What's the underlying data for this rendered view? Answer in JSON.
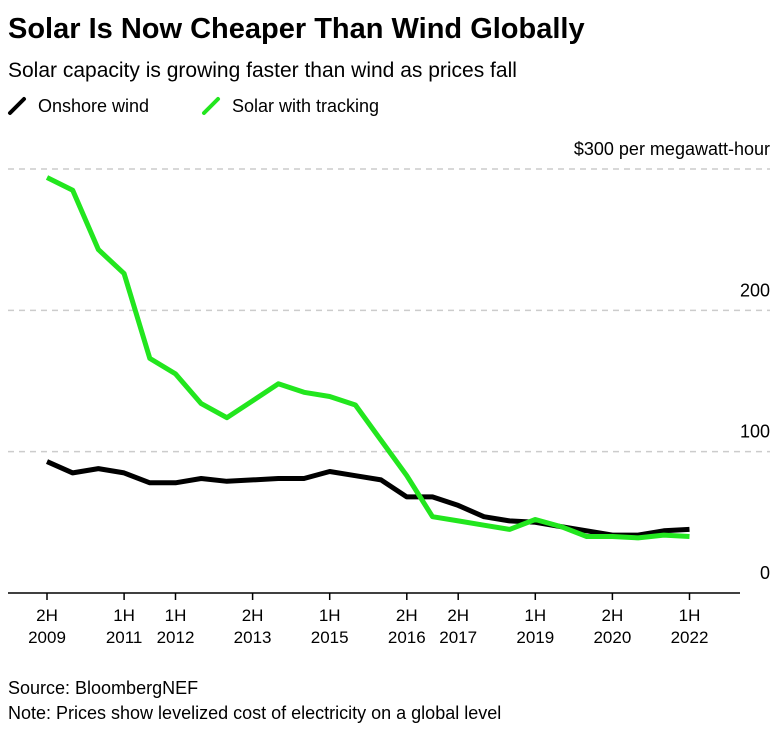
{
  "chart_data": {
    "type": "line",
    "title": "Solar Is Now Cheaper Than Wind Globally",
    "subtitle": "Solar capacity is growing faster than wind as prices fall",
    "source": "Source: BloombergNEF",
    "note": "Note: Prices show levelized cost of electricity on a global level",
    "categories": [
      "2H 2009",
      null,
      null,
      "1H 2011",
      null,
      "1H 2012",
      null,
      null,
      "2H 2013",
      null,
      null,
      "1H 2015",
      null,
      null,
      "2H 2016",
      null,
      "2H 2017",
      null,
      null,
      "1H 2019",
      null,
      null,
      "2H 2020",
      null,
      null,
      "1H 2022"
    ],
    "series": [
      {
        "name": "Onshore wind",
        "color": "#000000",
        "values": [
          93,
          85,
          88,
          85,
          78,
          78,
          81,
          79,
          80,
          81,
          81,
          86,
          83,
          80,
          68,
          68,
          62,
          54,
          51,
          50,
          47,
          44,
          41,
          41,
          44,
          45
        ]
      },
      {
        "name": "Solar with tracking",
        "color": "#22e61e",
        "values": [
          294,
          285,
          243,
          226,
          166,
          155,
          134,
          124,
          136,
          148,
          142,
          139,
          133,
          108,
          83,
          54,
          51,
          48,
          45,
          52,
          47,
          40,
          40,
          39,
          41,
          40
        ]
      }
    ],
    "ylim": [
      0,
      300
    ],
    "yticks": [
      0,
      100,
      200,
      {
        "value": 300,
        "label": "$300 per megawatt-hour"
      }
    ],
    "grid": true
  }
}
